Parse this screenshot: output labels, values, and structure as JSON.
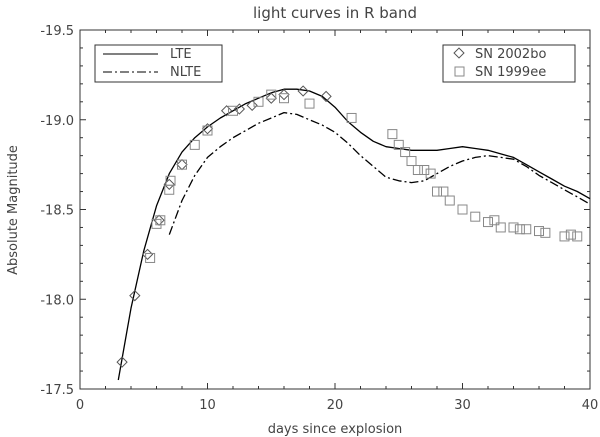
{
  "chart_data": {
    "type": "line",
    "title": "light curves in R band",
    "xlabel": "days since explosion",
    "ylabel": "Absolute Magnitude",
    "xlim": [
      0,
      40
    ],
    "ylim": [
      -17.5,
      -19.5
    ],
    "y_inverted": true,
    "grid": false,
    "x_ticks": [
      0,
      10,
      20,
      30,
      40
    ],
    "y_ticks": [
      -17.5,
      -18.0,
      -18.5,
      -19.0,
      -19.5
    ],
    "x_tick_labels": [
      "0",
      "10",
      "20",
      "30",
      "40"
    ],
    "y_tick_labels": [
      "-17.5",
      "-18.0",
      "-18.5",
      "-19.0",
      "-19.5"
    ],
    "series": [
      {
        "name": "LTE",
        "kind": "line",
        "style": "solid",
        "color": "#000000",
        "x": [
          3.0,
          4.0,
          5.0,
          6.0,
          7.0,
          8.0,
          9.0,
          10.0,
          11.0,
          12.0,
          13.0,
          14.0,
          15.0,
          16.0,
          17.0,
          18.0,
          19.0,
          20.0,
          21.0,
          22.0,
          23.0,
          24.0,
          25.0,
          26.0,
          27.0,
          28.0,
          29.0,
          30.0,
          31.0,
          32.0,
          33.0,
          34.0,
          35.0,
          36.0,
          37.0,
          38.0,
          39.0,
          40.0
        ],
        "y": [
          -17.55,
          -17.95,
          -18.27,
          -18.52,
          -18.7,
          -18.82,
          -18.9,
          -18.96,
          -19.01,
          -19.05,
          -19.09,
          -19.12,
          -19.15,
          -19.17,
          -19.17,
          -19.16,
          -19.13,
          -19.07,
          -18.99,
          -18.93,
          -18.88,
          -18.85,
          -18.84,
          -18.83,
          -18.83,
          -18.83,
          -18.84,
          -18.85,
          -18.84,
          -18.83,
          -18.81,
          -18.79,
          -18.75,
          -18.71,
          -18.67,
          -18.63,
          -18.6,
          -18.56
        ]
      },
      {
        "name": "NLTE",
        "kind": "line",
        "style": "dash-dot",
        "color": "#000000",
        "x": [
          7.0,
          8.0,
          9.0,
          10.0,
          11.0,
          12.0,
          13.0,
          14.0,
          15.0,
          16.0,
          17.0,
          18.0,
          19.0,
          20.0,
          21.0,
          22.0,
          23.0,
          24.0,
          25.0,
          26.0,
          27.0,
          28.0,
          29.0,
          30.0,
          31.0,
          32.0,
          33.0,
          34.0,
          35.0,
          36.0,
          37.0,
          38.0,
          39.0,
          40.0
        ],
        "y": [
          -18.36,
          -18.55,
          -18.69,
          -18.79,
          -18.85,
          -18.9,
          -18.94,
          -18.98,
          -19.01,
          -19.04,
          -19.03,
          -19.0,
          -18.97,
          -18.93,
          -18.87,
          -18.8,
          -18.74,
          -18.68,
          -18.66,
          -18.65,
          -18.66,
          -18.7,
          -18.74,
          -18.77,
          -18.79,
          -18.8,
          -18.79,
          -18.78,
          -18.74,
          -18.69,
          -18.65,
          -18.61,
          -18.57,
          -18.53
        ]
      },
      {
        "name": "SN 2002bo",
        "kind": "scatter",
        "marker": "diamond",
        "color": "#555555",
        "x": [
          3.3,
          4.3,
          5.3,
          6.2,
          7.0,
          8.0,
          10.0,
          11.5,
          12.5,
          13.5,
          15.0,
          16.0,
          17.5,
          19.3
        ],
        "y": [
          -17.65,
          -18.02,
          -18.25,
          -18.44,
          -18.64,
          -18.75,
          -18.95,
          -19.05,
          -19.06,
          -19.08,
          -19.12,
          -19.14,
          -19.16,
          -19.13
        ]
      },
      {
        "name": "SN 1999ee",
        "kind": "scatter",
        "marker": "square",
        "color": "#888888",
        "x": [
          5.5,
          6.0,
          6.3,
          7.0,
          7.1,
          8.0,
          9.0,
          10.0,
          12.0,
          14.0,
          15.0,
          16.0,
          18.0,
          21.3,
          24.5,
          25.0,
          25.5,
          26.0,
          26.5,
          27.0,
          27.5,
          28.0,
          28.5,
          29.0,
          30.0,
          31.0,
          32.0,
          32.5,
          33.0,
          34.0,
          34.5,
          35.0,
          36.0,
          36.5,
          38.0,
          38.5,
          39.0
        ],
        "y": [
          -18.23,
          -18.42,
          -18.44,
          -18.61,
          -18.66,
          -18.75,
          -18.86,
          -18.94,
          -19.05,
          -19.1,
          -19.14,
          -19.12,
          -19.09,
          -19.01,
          -18.92,
          -18.86,
          -18.82,
          -18.77,
          -18.72,
          -18.72,
          -18.7,
          -18.6,
          -18.6,
          -18.55,
          -18.5,
          -18.46,
          -18.43,
          -18.44,
          -18.4,
          -18.4,
          -18.39,
          -18.39,
          -18.38,
          -18.37,
          -18.35,
          -18.36,
          -18.35
        ]
      }
    ],
    "legends": [
      {
        "position": "top-left",
        "entries": [
          "LTE",
          "NLTE"
        ]
      },
      {
        "position": "top-right",
        "entries": [
          "SN 2002bo",
          "SN 1999ee"
        ]
      }
    ]
  }
}
